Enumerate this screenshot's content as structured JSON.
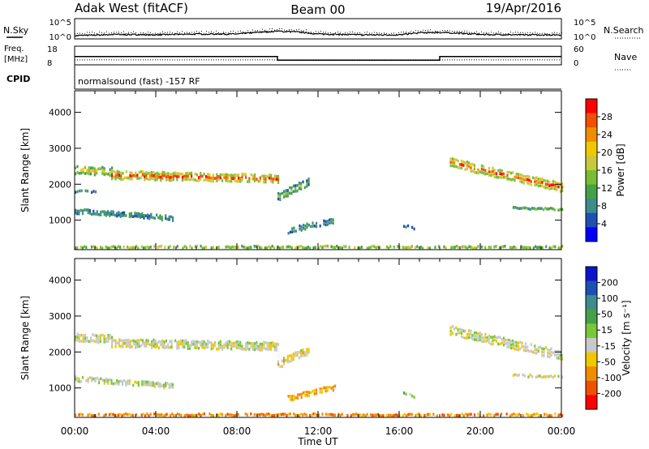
{
  "header": {
    "station": "Adak West (fitACF)",
    "beam": "Beam 00",
    "date": "19/Apr/2016"
  },
  "top_panels": {
    "nsky_label": "N.Sky",
    "nsearch_label": "N.Search",
    "noise_ticks": [
      "10^5",
      "10^0"
    ],
    "freq_label": "Freq.",
    "freq_unit": "[MHz]",
    "freq_ticks": [
      "18",
      "8"
    ],
    "nave_label": "Nave",
    "nave_ticks": [
      "60",
      "0"
    ],
    "cpid_label": "CPID",
    "cpid_text": "normalsound (fast) -157 RF"
  },
  "colors": {
    "power": [
      "#0000ff",
      "#1e50b4",
      "#3c8c8c",
      "#46a046",
      "#78be32",
      "#c8c83c",
      "#f0c800",
      "#f08c00",
      "#f05000",
      "#ff0000"
    ],
    "velocity": [
      "#0a14c8",
      "#1e50b4",
      "#3c8c8c",
      "#46a046",
      "#78c83c",
      "#c8c8c8",
      "#f0c800",
      "#f08c00",
      "#f05000",
      "#ff0000"
    ]
  },
  "chart_data": [
    {
      "type": "line",
      "title": "N.Sky / N.Search",
      "x_range_hours": [
        0,
        24
      ],
      "ylim_log10": [
        0,
        5
      ],
      "series": [
        {
          "name": "N.Sky",
          "x": [
            0,
            2,
            4,
            6,
            8,
            9,
            10,
            11,
            12,
            14,
            16,
            17,
            18,
            19,
            20,
            22,
            24
          ],
          "values_log10": [
            0.8,
            1.1,
            1.0,
            1.2,
            1.2,
            1.6,
            1.9,
            1.7,
            1.2,
            1.0,
            1.0,
            1.5,
            1.6,
            1.4,
            1.1,
            1.0,
            1.0
          ]
        }
      ]
    },
    {
      "type": "line",
      "title": "Freq. / Nave",
      "x_range_hours": [
        0,
        24
      ],
      "ylim_mhz": [
        8,
        18
      ],
      "ylim_nave": [
        0,
        60
      ],
      "series": [
        {
          "name": "Freq.",
          "x": [
            0,
            10,
            10,
            18,
            18,
            24
          ],
          "values": [
            12.5,
            12.5,
            10.5,
            10.5,
            12.5,
            12.5
          ]
        },
        {
          "name": "Nave",
          "x": [
            0,
            24
          ],
          "values": [
            16,
            16
          ]
        }
      ]
    },
    {
      "type": "heatmap",
      "ylabel": "Slant Range [km]",
      "ylim": [
        180,
        4600
      ],
      "yticks": [
        1000,
        2000,
        3000,
        4000
      ],
      "colorbar_label": "Power [dB]",
      "colorbar_ticks": [
        "4",
        "8",
        "12",
        "16",
        "20",
        "24",
        "28"
      ],
      "bands": [
        {
          "t0": 0.0,
          "t1": 1.8,
          "r_center": [
            2400,
            2350
          ],
          "width": 250,
          "level": [
            2,
            6
          ]
        },
        {
          "t0": 1.8,
          "t1": 10.0,
          "r_center": [
            2250,
            2150
          ],
          "width": 250,
          "level": [
            3,
            8
          ]
        },
        {
          "t0": 0.0,
          "t1": 4.8,
          "r_center": [
            1250,
            1050
          ],
          "width": 150,
          "level": [
            1,
            3
          ]
        },
        {
          "t0": 0.0,
          "t1": 1.0,
          "r_center": [
            1800,
            1780
          ],
          "width": 80,
          "level": [
            1,
            2
          ]
        },
        {
          "t0": 10.0,
          "t1": 11.5,
          "r_center": [
            1650,
            2050
          ],
          "width": 230,
          "level": [
            1,
            4
          ]
        },
        {
          "t0": 10.5,
          "t1": 12.8,
          "r_center": [
            700,
            1000
          ],
          "width": 180,
          "level": [
            1,
            3
          ]
        },
        {
          "t0": 16.2,
          "t1": 16.8,
          "r_center": [
            850,
            750
          ],
          "width": 120,
          "level": [
            1,
            2
          ]
        },
        {
          "t0": 18.5,
          "t1": 24.0,
          "r_center": [
            2600,
            1900
          ],
          "width": 280,
          "level": [
            3,
            8
          ]
        },
        {
          "t0": 21.5,
          "t1": 24.0,
          "r_center": [
            1350,
            1300
          ],
          "width": 120,
          "level": [
            1,
            3
          ]
        },
        {
          "t0": 0.0,
          "t1": 24.0,
          "r_center": [
            250,
            250
          ],
          "width": 120,
          "level": [
            1,
            4
          ]
        }
      ]
    },
    {
      "type": "heatmap",
      "ylabel": "Slant Range [km]",
      "ylim": [
        180,
        4600
      ],
      "yticks": [
        1000,
        2000,
        3000,
        4000
      ],
      "colorbar_label": "Velocity [m s⁻¹]",
      "colorbar_ticks": [
        "200",
        "100",
        "50",
        "15",
        "-15",
        "-50",
        "-100",
        "-200"
      ],
      "bands": [
        {
          "t0": 0.0,
          "t1": 1.8,
          "r_center": [
            2400,
            2350
          ],
          "width": 250,
          "level": [
            5,
            5
          ]
        },
        {
          "t0": 1.8,
          "t1": 10.0,
          "r_center": [
            2250,
            2150
          ],
          "width": 250,
          "level": [
            5,
            5
          ]
        },
        {
          "t0": 0.0,
          "t1": 4.8,
          "r_center": [
            1250,
            1050
          ],
          "width": 150,
          "level": [
            5,
            5
          ]
        },
        {
          "t0": 10.0,
          "t1": 11.5,
          "r_center": [
            1650,
            2050
          ],
          "width": 230,
          "level": [
            5,
            6
          ]
        },
        {
          "t0": 10.5,
          "t1": 12.8,
          "r_center": [
            700,
            1000
          ],
          "width": 180,
          "level": [
            6,
            7
          ]
        },
        {
          "t0": 16.2,
          "t1": 16.8,
          "r_center": [
            850,
            750
          ],
          "width": 120,
          "level": [
            3,
            4
          ]
        },
        {
          "t0": 18.5,
          "t1": 24.0,
          "r_center": [
            2600,
            1900
          ],
          "width": 280,
          "level": [
            5,
            5
          ]
        },
        {
          "t0": 21.5,
          "t1": 24.0,
          "r_center": [
            1350,
            1300
          ],
          "width": 120,
          "level": [
            5,
            5
          ]
        },
        {
          "t0": 0.0,
          "t1": 24.0,
          "r_center": [
            250,
            250
          ],
          "width": 120,
          "level": [
            6,
            7
          ]
        }
      ]
    }
  ],
  "x_axis": {
    "label": "Time UT",
    "ticks": [
      "00:00",
      "04:00",
      "08:00",
      "12:00",
      "16:00",
      "20:00",
      "00:00"
    ]
  }
}
